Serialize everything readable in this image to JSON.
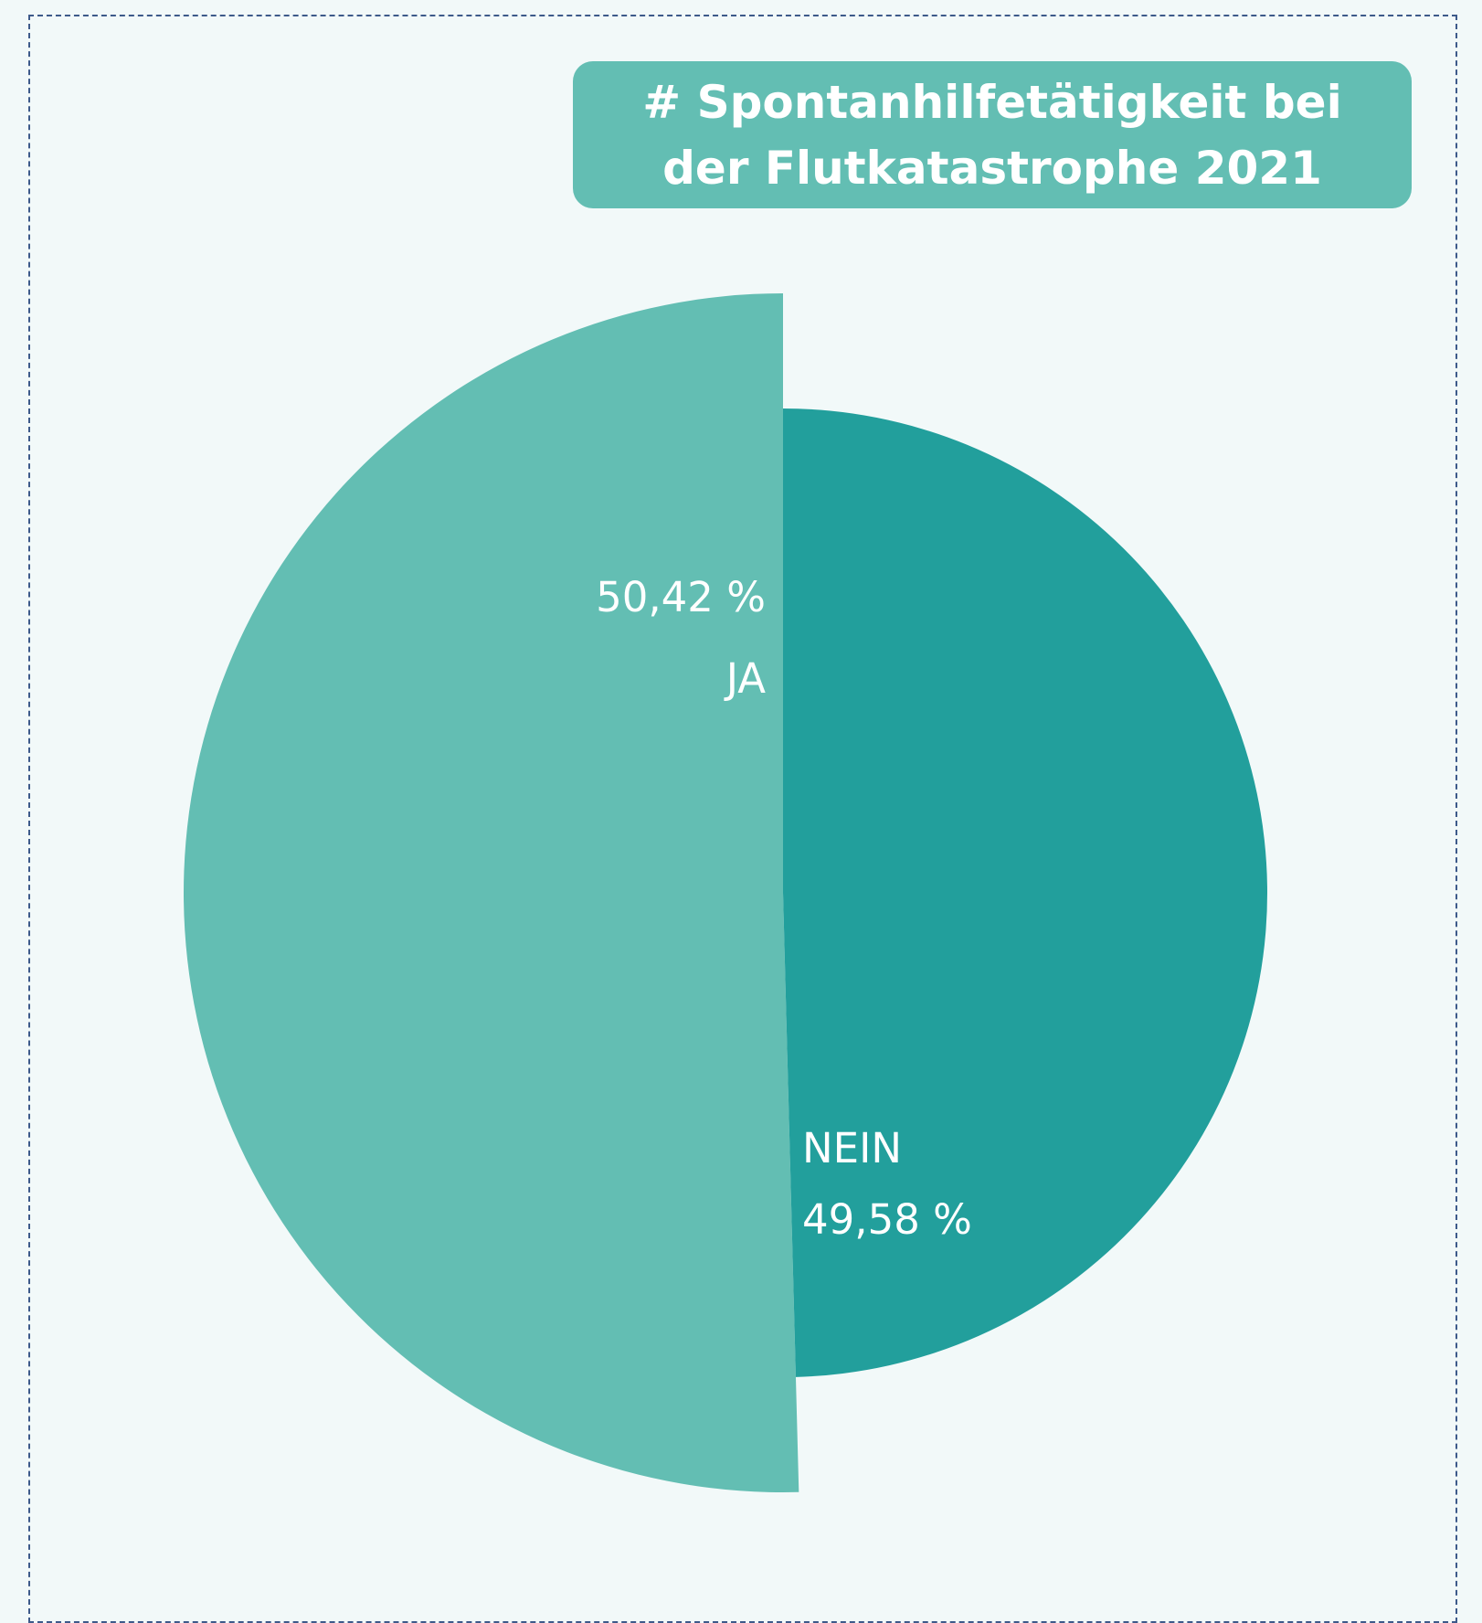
{
  "chart_data": {
    "type": "pie",
    "title": "# Spontanhilfetätigkeit bei der Flutkatastrophe 2021",
    "categories": [
      "JA",
      "NEIN"
    ],
    "values": [
      50.42,
      49.58
    ],
    "value_labels": [
      "50,42 %",
      "49,58 %"
    ],
    "colors": [
      "#63beb3",
      "#229f9c"
    ]
  }
}
